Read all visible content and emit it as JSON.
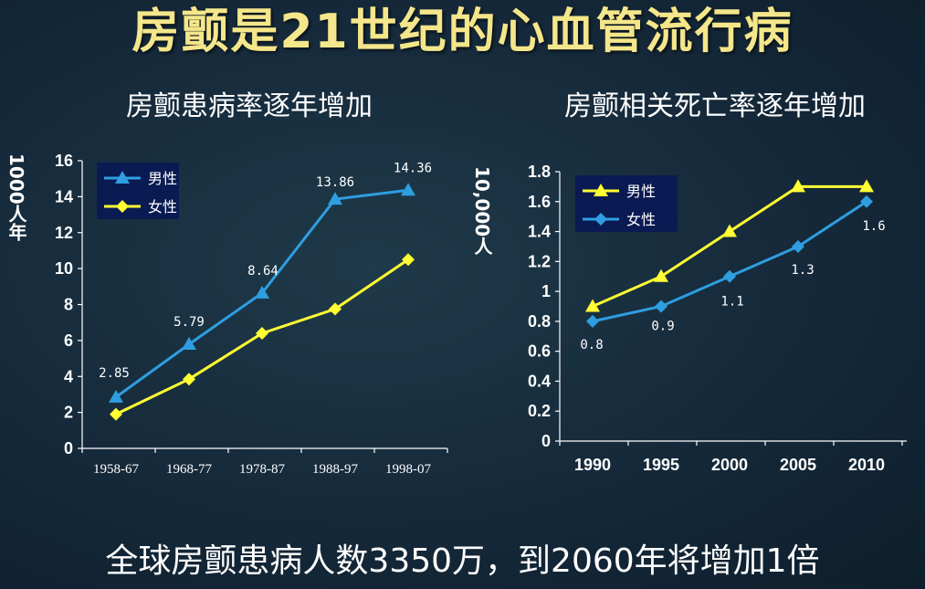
{
  "title": "房颤是21世纪的心血管流行病",
  "footer": "全球房颤患病人数3350万，到2060年将增加1倍",
  "chart_data": [
    {
      "type": "line",
      "title": "房颤患病率逐年增加",
      "ylabel": "1000人年",
      "categories": [
        "1958-67",
        "1968-77",
        "1978-87",
        "1988-97",
        "1998-07"
      ],
      "ylim": [
        0,
        16
      ],
      "yticks": [
        0,
        2,
        4,
        6,
        8,
        10,
        12,
        14,
        16
      ],
      "legend_position": "top-left",
      "series": [
        {
          "name": "男性",
          "values": [
            2.85,
            5.79,
            8.64,
            13.86,
            14.36
          ],
          "color": "#2e9ee0",
          "marker": "triangle",
          "data_labels": [
            "2.85",
            "5.79",
            "8.64",
            "13.86",
            "14.36"
          ]
        },
        {
          "name": "女性",
          "values": [
            1.9,
            3.85,
            6.4,
            7.75,
            10.5
          ],
          "color": "#ffff33",
          "marker": "diamond"
        }
      ]
    },
    {
      "type": "line",
      "title": "房颤相关死亡率逐年增加",
      "ylabel": "10,000人",
      "categories": [
        "1990",
        "1995",
        "2000",
        "2005",
        "2010"
      ],
      "ylim": [
        0,
        1.8
      ],
      "yticks": [
        0,
        0.2,
        0.4,
        0.6,
        0.8,
        1,
        1.2,
        1.4,
        1.6,
        1.8
      ],
      "legend_position": "top-left",
      "series": [
        {
          "name": "男性",
          "values": [
            0.9,
            1.1,
            1.4,
            1.7,
            1.7
          ],
          "color": "#ffff33",
          "marker": "triangle"
        },
        {
          "name": "女性",
          "values": [
            0.8,
            0.9,
            1.1,
            1.3,
            1.6
          ],
          "color": "#2e9ee0",
          "marker": "diamond",
          "data_labels": [
            "0.8",
            "0.9",
            "1.1",
            "1.3",
            "1.6"
          ]
        }
      ]
    }
  ]
}
